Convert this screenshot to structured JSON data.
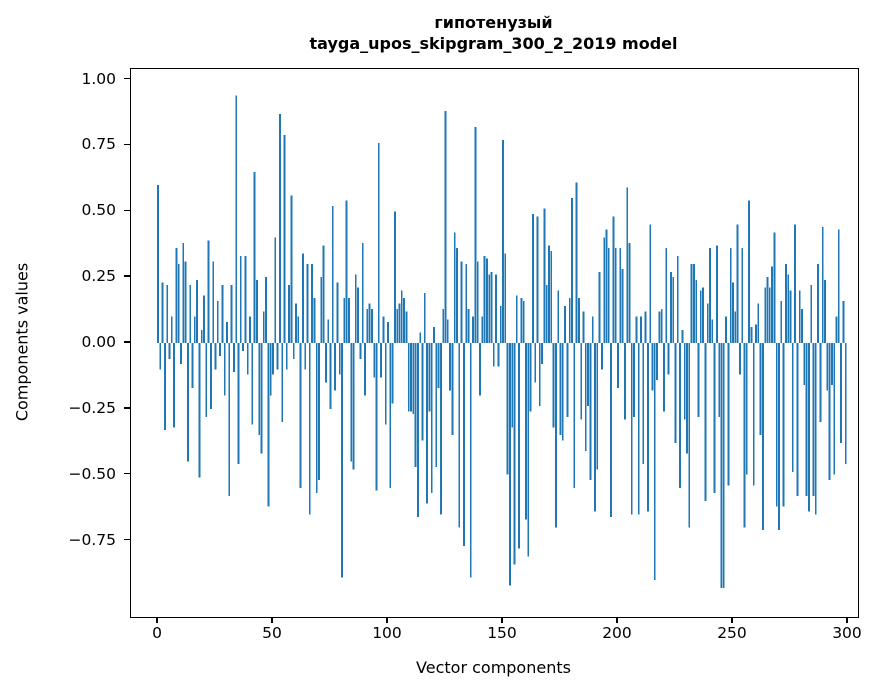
{
  "title": {
    "line1": "гипотенузый",
    "line2": "tayga_upos_skipgram_300_2_2019 model"
  },
  "chart_data": {
    "type": "bar",
    "title": "гипотенузый\ntayga_upos_skipgram_300_2_2019 model",
    "xlabel": "Vector components",
    "ylabel": "Components values",
    "bar_color": "#1f77b4",
    "axis_color": "#000000",
    "grid": false,
    "legend": null,
    "xlim": [
      -11.74,
      304.35
    ],
    "ylim": [
      -1.04,
      1.04
    ],
    "x_ticks": [
      0,
      50,
      100,
      150,
      200,
      250,
      300
    ],
    "y_tick_labels": [
      "1.00",
      "0.75",
      "0.50",
      "0.25",
      "0.00",
      "−0.25",
      "−0.50",
      "−0.75"
    ],
    "y_tick_values": [
      1.0,
      0.75,
      0.5,
      0.25,
      0.0,
      -0.25,
      -0.5,
      -0.75
    ],
    "x_description": "vector component index 0..299",
    "values": [
      0.6,
      -0.1,
      0.23,
      -0.33,
      0.22,
      -0.06,
      0.1,
      -0.32,
      0.36,
      0.3,
      -0.08,
      0.38,
      0.31,
      -0.45,
      0.22,
      -0.17,
      0.1,
      0.24,
      -0.51,
      0.05,
      0.18,
      -0.28,
      0.39,
      -0.25,
      0.31,
      -0.1,
      0.16,
      -0.05,
      0.22,
      -0.2,
      0.08,
      -0.58,
      0.22,
      -0.11,
      0.94,
      -0.46,
      0.33,
      -0.03,
      0.33,
      -0.12,
      0.1,
      -0.31,
      0.65,
      0.24,
      -0.35,
      -0.42,
      0.12,
      0.25,
      -0.62,
      -0.2,
      -0.12,
      0.4,
      -0.1,
      0.87,
      -0.3,
      0.79,
      -0.1,
      0.22,
      0.56,
      -0.06,
      0.15,
      0.1,
      -0.55,
      0.34,
      -0.1,
      0.3,
      -0.65,
      0.3,
      0.17,
      -0.57,
      -0.52,
      0.25,
      0.37,
      -0.15,
      0.09,
      -0.25,
      0.52,
      -0.18,
      0.23,
      -0.12,
      -0.89,
      0.17,
      0.54,
      0.17,
      -0.45,
      -0.48,
      0.26,
      0.21,
      -0.06,
      0.38,
      -0.2,
      0.13,
      0.15,
      0.13,
      -0.13,
      -0.56,
      0.76,
      -0.13,
      0.1,
      -0.31,
      0.08,
      -0.55,
      -0.23,
      0.5,
      0.13,
      0.15,
      0.2,
      0.17,
      0.12,
      -0.26,
      -0.26,
      -0.27,
      -0.47,
      -0.66,
      0.04,
      -0.37,
      0.19,
      -0.61,
      -0.26,
      -0.57,
      0.06,
      -0.47,
      -0.17,
      -0.65,
      0.13,
      0.88,
      0.09,
      -0.18,
      -0.35,
      0.42,
      0.36,
      -0.7,
      0.31,
      -0.77,
      0.3,
      0.13,
      -0.89,
      0.1,
      0.82,
      0.31,
      -0.2,
      0.1,
      0.33,
      0.32,
      0.26,
      0.27,
      -0.09,
      0.26,
      -0.09,
      0.14,
      0.77,
      0.34,
      -0.5,
      -0.92,
      -0.32,
      -0.84,
      0.18,
      -0.78,
      0.17,
      0.16,
      -0.67,
      -0.81,
      -0.26,
      0.49,
      -0.15,
      0.48,
      -0.24,
      -0.08,
      0.51,
      0.22,
      0.37,
      0.35,
      -0.32,
      -0.7,
      0.2,
      -0.35,
      -0.37,
      0.14,
      -0.28,
      0.17,
      0.55,
      -0.55,
      0.61,
      0.17,
      -0.29,
      0.12,
      -0.41,
      -0.24,
      -0.52,
      0.1,
      -0.64,
      -0.48,
      0.27,
      -0.1,
      0.4,
      0.43,
      0.36,
      -0.66,
      0.48,
      0.36,
      -0.17,
      0.36,
      0.28,
      -0.29,
      0.59,
      0.38,
      -0.65,
      -0.28,
      0.1,
      -0.65,
      0.1,
      -0.46,
      0.12,
      -0.64,
      0.45,
      -0.18,
      -0.9,
      -0.14,
      0.12,
      0.13,
      -0.26,
      0.36,
      -0.12,
      0.27,
      0.25,
      -0.38,
      0.33,
      -0.55,
      0.05,
      -0.29,
      -0.42,
      -0.7,
      0.3,
      0.3,
      0.24,
      -0.28,
      0.2,
      0.21,
      -0.6,
      0.15,
      0.36,
      0.09,
      -0.57,
      0.37,
      -0.28,
      -0.93,
      -0.93,
      0.1,
      -0.54,
      0.36,
      0.23,
      0.12,
      0.45,
      -0.12,
      0.36,
      -0.7,
      -0.5,
      0.54,
      0.06,
      -0.54,
      0.07,
      0.15,
      -0.35,
      -0.71,
      0.21,
      0.25,
      0.21,
      0.29,
      0.42,
      -0.62,
      -0.71,
      0.16,
      -0.62,
      0.3,
      0.26,
      0.2,
      -0.49,
      0.45,
      -0.58,
      0.2,
      0.13,
      -0.16,
      -0.58,
      -0.64,
      0.22,
      -0.58,
      -0.65,
      0.3,
      -0.3,
      0.44,
      0.24,
      -0.18,
      -0.52,
      -0.16,
      -0.5,
      0.1,
      0.43,
      -0.38,
      0.16,
      -0.46
    ]
  }
}
